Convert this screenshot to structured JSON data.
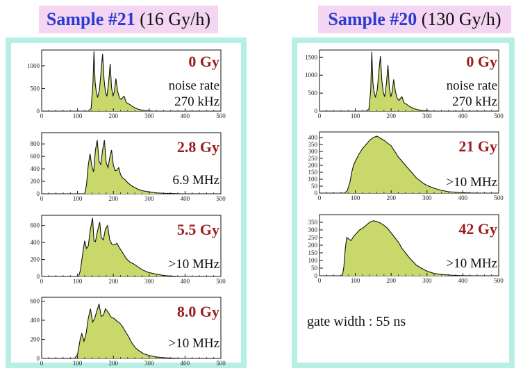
{
  "headers": [
    {
      "sample": "Sample #21",
      "rate": "(16 Gy/h)"
    },
    {
      "sample": "Sample #20",
      "rate": "(130 Gy/h)"
    }
  ],
  "gate_note": "gate width : 55 ns",
  "colors": {
    "fill": "#c9d86a",
    "line": "#111111",
    "dose": "#9b1c1c",
    "title_sample": "#2b3bd1",
    "title_bg": "#f4d5f2",
    "frame": "#b6efe4"
  },
  "chart_data": [
    {
      "type": "area",
      "dose_label": "0 Gy",
      "note_line1": "noise rate",
      "note_line2": "270 kHz",
      "xlim": [
        0,
        500
      ],
      "ylim": [
        0,
        1350
      ],
      "xticks": [
        "0",
        "100",
        "200",
        "300",
        "400",
        "500"
      ],
      "yticks": [
        0,
        500,
        1000
      ],
      "x": [
        130,
        138,
        143,
        146,
        149,
        152,
        156,
        161,
        166,
        170,
        174,
        178,
        182,
        187,
        191,
        195,
        199,
        203,
        207,
        212,
        217,
        222,
        226,
        230,
        236,
        243,
        250,
        260,
        270,
        280,
        290,
        300,
        310
      ],
      "y": [
        0,
        60,
        600,
        1320,
        650,
        450,
        300,
        460,
        900,
        1260,
        700,
        420,
        330,
        650,
        1040,
        520,
        330,
        440,
        720,
        440,
        290,
        260,
        300,
        330,
        190,
        160,
        120,
        70,
        40,
        25,
        15,
        8,
        0
      ]
    },
    {
      "type": "area",
      "dose_label": "2.8 Gy",
      "note_line1": "",
      "note_line2": "6.9 MHz",
      "xlim": [
        0,
        500
      ],
      "ylim": [
        0,
        980
      ],
      "xticks": [
        "0",
        "100",
        "200",
        "300",
        "400",
        "500"
      ],
      "yticks": [
        0,
        200,
        400,
        600,
        800
      ],
      "x": [
        120,
        125,
        130,
        135,
        140,
        145,
        150,
        155,
        160,
        165,
        170,
        175,
        180,
        185,
        190,
        195,
        200,
        205,
        210,
        215,
        220,
        225,
        230,
        240,
        250,
        260,
        270,
        280,
        300,
        320,
        340,
        360,
        390
      ],
      "y": [
        0,
        140,
        460,
        640,
        440,
        350,
        700,
        860,
        520,
        470,
        700,
        860,
        500,
        420,
        580,
        700,
        460,
        370,
        380,
        420,
        310,
        260,
        240,
        180,
        130,
        100,
        70,
        50,
        30,
        15,
        8,
        4,
        0
      ]
    },
    {
      "type": "area",
      "dose_label": "5.5 Gy",
      "note_line1": "",
      "note_line2": ">10 MHz",
      "xlim": [
        0,
        500
      ],
      "ylim": [
        0,
        720
      ],
      "xticks": [
        "0",
        "100",
        "200",
        "300",
        "400",
        "500"
      ],
      "yticks": [
        0,
        200,
        400,
        600
      ],
      "x": [
        103,
        108,
        115,
        120,
        125,
        130,
        136,
        142,
        146,
        150,
        156,
        162,
        166,
        172,
        178,
        184,
        190,
        196,
        202,
        210,
        218,
        226,
        236,
        246,
        256,
        266,
        280,
        296,
        316,
        336,
        356,
        380
      ],
      "y": [
        0,
        70,
        280,
        420,
        330,
        360,
        560,
        690,
        420,
        410,
        540,
        640,
        460,
        430,
        560,
        600,
        430,
        380,
        370,
        390,
        330,
        280,
        210,
        170,
        150,
        120,
        80,
        50,
        30,
        15,
        6,
        0
      ]
    },
    {
      "type": "area",
      "dose_label": "8.0 Gy",
      "note_line1": "",
      "note_line2": ">10 MHz",
      "xlim": [
        0,
        500
      ],
      "ylim": [
        0,
        640
      ],
      "xticks": [
        "0",
        "100",
        "200",
        "300",
        "400",
        "500"
      ],
      "yticks": [
        0,
        200,
        400,
        600
      ],
      "x": [
        92,
        100,
        108,
        112,
        118,
        124,
        130,
        136,
        142,
        148,
        154,
        160,
        166,
        172,
        178,
        186,
        194,
        202,
        210,
        218,
        226,
        234,
        242,
        252,
        262,
        272,
        284,
        300,
        320,
        340,
        360,
        380
      ],
      "y": [
        0,
        40,
        210,
        260,
        180,
        260,
        420,
        520,
        380,
        420,
        500,
        570,
        440,
        450,
        520,
        480,
        430,
        420,
        390,
        370,
        330,
        280,
        230,
        160,
        110,
        80,
        50,
        30,
        15,
        8,
        3,
        0
      ]
    },
    {
      "type": "area",
      "dose_label": "0 Gy",
      "note_line1": "noise rate",
      "note_line2": "270 kHz",
      "xlim": [
        0,
        500
      ],
      "ylim": [
        0,
        1700
      ],
      "xticks": [
        "0",
        "100",
        "200",
        "300",
        "400",
        "500"
      ],
      "yticks": [
        0,
        500,
        1000,
        1500
      ],
      "x": [
        130,
        138,
        143,
        146,
        149,
        152,
        156,
        161,
        166,
        170,
        174,
        178,
        182,
        187,
        191,
        195,
        199,
        203,
        207,
        212,
        217,
        222,
        226,
        230,
        236,
        243,
        250,
        260,
        270,
        280,
        290,
        300,
        310
      ],
      "y": [
        0,
        60,
        600,
        1650,
        800,
        550,
        380,
        580,
        1150,
        1530,
        850,
        520,
        400,
        800,
        1280,
        640,
        400,
        540,
        880,
        540,
        350,
        300,
        360,
        400,
        230,
        190,
        140,
        85,
        48,
        30,
        18,
        10,
        0
      ]
    },
    {
      "type": "area",
      "dose_label": "21 Gy",
      "note_line1": "",
      "note_line2": ">10 MHz",
      "xlim": [
        0,
        500
      ],
      "ylim": [
        0,
        440
      ],
      "xticks": [
        "0",
        "100",
        "200",
        "300",
        "400",
        "500"
      ],
      "yticks": [
        0,
        50,
        100,
        150,
        200,
        250,
        300,
        350,
        400
      ],
      "x": [
        70,
        78,
        85,
        90,
        95,
        100,
        110,
        120,
        130,
        140,
        150,
        160,
        170,
        180,
        190,
        200,
        210,
        220,
        230,
        240,
        250,
        260,
        270,
        280,
        290,
        300,
        320,
        340,
        360,
        390,
        420,
        445
      ],
      "y": [
        0,
        20,
        80,
        150,
        200,
        230,
        280,
        320,
        350,
        380,
        400,
        410,
        395,
        380,
        360,
        340,
        300,
        260,
        230,
        200,
        170,
        140,
        110,
        90,
        70,
        55,
        35,
        20,
        10,
        4,
        1,
        0
      ]
    },
    {
      "type": "area",
      "dose_label": "42 Gy",
      "note_line1": "",
      "note_line2": ">10 MHz",
      "xlim": [
        0,
        500
      ],
      "ylim": [
        0,
        400
      ],
      "xticks": [
        "0",
        "100",
        "200",
        "300",
        "400",
        "500"
      ],
      "yticks": [
        0,
        50,
        100,
        150,
        200,
        250,
        300,
        350
      ],
      "x": [
        64,
        68,
        72,
        76,
        82,
        88,
        96,
        104,
        112,
        120,
        130,
        140,
        150,
        160,
        170,
        180,
        190,
        200,
        210,
        220,
        230,
        240,
        250,
        260,
        270,
        280,
        300,
        320,
        340,
        370,
        400,
        430
      ],
      "y": [
        0,
        60,
        180,
        250,
        240,
        230,
        260,
        280,
        300,
        310,
        330,
        350,
        360,
        355,
        345,
        330,
        310,
        280,
        250,
        220,
        180,
        150,
        120,
        95,
        70,
        55,
        30,
        15,
        8,
        3,
        1,
        0
      ]
    }
  ]
}
